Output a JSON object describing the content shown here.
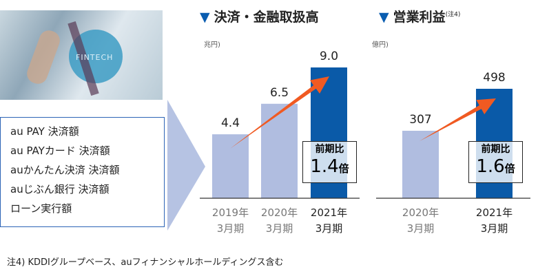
{
  "photo": {
    "caption": "FINTECH"
  },
  "list_items": [
    "au PAY 決済額",
    "au PAYカード 決済額",
    "auかんたん決済 決済額",
    "auじぶん銀行 決済額",
    "ローン実行額"
  ],
  "colors": {
    "past_bar": "#b0bde0",
    "current_bar": "#0a5aa8",
    "arrow": "#f05a22",
    "title_marker": "#0a5db0",
    "chevron": "#b6c3e3"
  },
  "chart_data": [
    {
      "type": "bar",
      "title": "決済・金融取扱高",
      "marker": "▼",
      "unit": "兆円)",
      "categories": [
        [
          "2019年",
          "3月期"
        ],
        [
          "2020年",
          "3月期"
        ],
        [
          "2021年",
          "3月期"
        ]
      ],
      "values": [
        4.4,
        6.5,
        9.0
      ],
      "value_labels": [
        "4.4",
        "6.5",
        "9.0"
      ],
      "ratio": {
        "label": "前期比",
        "value": "1.4",
        "suffix": "倍"
      }
    },
    {
      "type": "bar",
      "title": "営業利益",
      "title_note": "(注4)",
      "marker": "▼",
      "unit": "億円)",
      "categories": [
        [
          "2020年",
          "3月期"
        ],
        [
          "2021年",
          "3月期"
        ]
      ],
      "values": [
        307,
        498
      ],
      "value_labels": [
        "307",
        "498"
      ],
      "ratio": {
        "label": "前期比",
        "value": "1.6",
        "suffix": "倍"
      }
    }
  ],
  "footnote": "注4) KDDIグループベース、auフィナンシャルホールディングス含む"
}
